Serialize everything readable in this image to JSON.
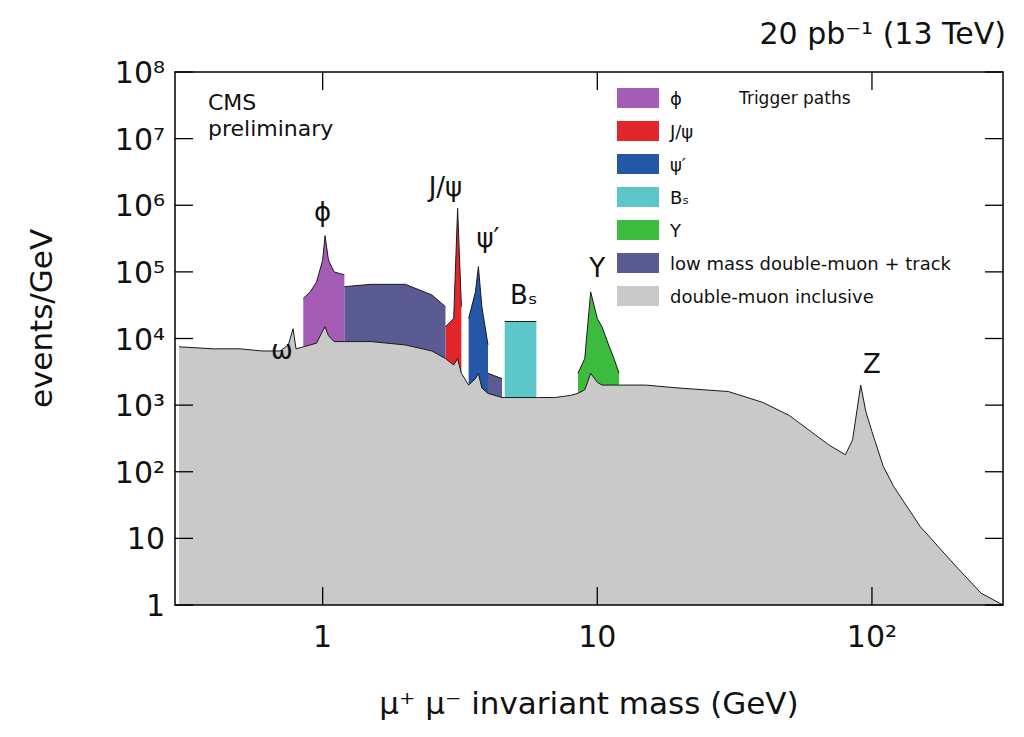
{
  "chart_data": {
    "type": "area",
    "title": "20 pb⁻¹ (13 TeV)",
    "experiment_label": "CMS preliminary",
    "x_label": "μ⁺ μ⁻ invariant mass (GeV)",
    "y_label": "events/GeV",
    "legend_title": "Trigger paths",
    "log": true,
    "grid": false,
    "legend": "upper right",
    "xlim": [
      0.29,
      300
    ],
    "ylim": [
      1,
      100000000
    ],
    "xticks": [
      1,
      10,
      {
        "value": 100,
        "label": "10²"
      }
    ],
    "yticks": [
      1,
      10,
      {
        "value": 100,
        "label": "10²"
      },
      {
        "value": 1000,
        "label": "10³"
      },
      {
        "value": 10000,
        "label": "10⁴"
      },
      {
        "value": 100000,
        "label": "10⁵"
      },
      {
        "value": 1000000,
        "label": "10⁶"
      },
      {
        "value": 10000000,
        "label": "10⁷"
      },
      {
        "value": 100000000,
        "label": "10⁸"
      }
    ],
    "x": [
      0.3,
      0.4,
      0.5,
      0.6,
      0.7,
      0.75,
      0.78,
      0.8,
      0.85,
      0.9,
      0.95,
      1.0,
      1.02,
      1.05,
      1.1,
      1.2,
      1.5,
      2.0,
      2.5,
      2.8,
      3.0,
      3.1,
      3.2,
      3.4,
      3.6,
      3.69,
      3.8,
      4.0,
      4.5,
      4.6,
      5.0,
      5.5,
      6.0,
      6.1,
      7.0,
      8.0,
      8.5,
      9.0,
      9.46,
      10.0,
      10.4,
      11.0,
      11.5,
      12,
      15,
      20,
      30,
      40,
      50,
      60,
      70,
      80,
      85,
      91,
      95,
      100,
      110,
      120,
      150,
      200,
      250,
      300
    ],
    "series": [
      {
        "name": "ϕ",
        "color": "#a45cb5",
        "values": [
          null,
          null,
          null,
          null,
          null,
          null,
          null,
          null,
          40000,
          50000,
          70000,
          150000,
          350000,
          150000,
          100000,
          90000,
          null,
          null,
          null,
          null,
          null,
          null,
          null,
          null,
          null,
          null,
          null,
          null,
          null,
          null,
          null,
          null,
          null,
          null,
          null,
          null,
          null,
          null,
          null,
          null,
          null,
          null,
          null,
          null,
          null,
          null,
          null,
          null,
          null,
          null,
          null,
          null,
          null,
          null,
          null,
          null,
          null,
          null,
          null,
          null,
          null,
          null
        ]
      },
      {
        "name": "J/ψ",
        "color": "#e3262b",
        "values": [
          null,
          null,
          null,
          null,
          null,
          null,
          null,
          null,
          null,
          null,
          null,
          null,
          null,
          null,
          null,
          null,
          null,
          null,
          null,
          15000,
          20000,
          900000,
          30000,
          null,
          null,
          null,
          null,
          null,
          null,
          null,
          null,
          null,
          null,
          null,
          null,
          null,
          null,
          null,
          null,
          null,
          null,
          null,
          null,
          null,
          null,
          null,
          null,
          null,
          null,
          null,
          null,
          null,
          null,
          null,
          null,
          null,
          null,
          null,
          null,
          null,
          null,
          null
        ]
      },
      {
        "name": "ψ′",
        "color": "#2457a6",
        "values": [
          null,
          null,
          null,
          null,
          null,
          null,
          null,
          null,
          null,
          null,
          null,
          null,
          null,
          null,
          null,
          null,
          null,
          null,
          null,
          null,
          null,
          null,
          null,
          20000,
          50000,
          120000,
          30000,
          8000,
          null,
          null,
          null,
          null,
          null,
          null,
          null,
          null,
          null,
          null,
          null,
          null,
          null,
          null,
          null,
          null,
          null,
          null,
          null,
          null,
          null,
          null,
          null,
          null,
          null,
          null,
          null,
          null,
          null,
          null,
          null,
          null,
          null,
          null
        ]
      },
      {
        "name": "Bₛ",
        "color": "#5cc6c9",
        "values": [
          null,
          null,
          null,
          null,
          null,
          null,
          null,
          null,
          null,
          null,
          null,
          null,
          null,
          null,
          null,
          null,
          null,
          null,
          null,
          null,
          null,
          null,
          null,
          null,
          null,
          null,
          null,
          null,
          null,
          18000,
          18000,
          18000,
          18000,
          null,
          null,
          null,
          null,
          null,
          null,
          null,
          null,
          null,
          null,
          null,
          null,
          null,
          null,
          null,
          null,
          null,
          null,
          null,
          null,
          null,
          null,
          null,
          null,
          null,
          null,
          null,
          null,
          null
        ]
      },
      {
        "name": "Υ",
        "color": "#3dbb3f",
        "values": [
          null,
          null,
          null,
          null,
          null,
          null,
          null,
          null,
          null,
          null,
          null,
          null,
          null,
          null,
          null,
          null,
          null,
          null,
          null,
          null,
          null,
          null,
          null,
          null,
          null,
          null,
          null,
          null,
          null,
          null,
          null,
          null,
          null,
          null,
          null,
          null,
          3000,
          5000,
          50000,
          20000,
          15000,
          8000,
          5000,
          3000,
          null,
          null,
          null,
          null,
          null,
          null,
          null,
          null,
          null,
          null,
          null,
          null,
          null,
          null,
          null,
          null,
          null,
          null
        ]
      },
      {
        "name": "low mass double-muon + track",
        "color": "#5b5b94",
        "values": [
          null,
          null,
          null,
          null,
          null,
          null,
          null,
          null,
          null,
          null,
          null,
          null,
          null,
          null,
          null,
          60000,
          65000,
          65000,
          45000,
          30000,
          null,
          null,
          null,
          null,
          null,
          null,
          null,
          3000,
          2500,
          null,
          null,
          null,
          null,
          null,
          null,
          null,
          null,
          null,
          null,
          null,
          null,
          null,
          null,
          null,
          null,
          null,
          null,
          null,
          null,
          null,
          null,
          null,
          null,
          null,
          null,
          null,
          null,
          null,
          null,
          null,
          null,
          null
        ]
      },
      {
        "name": "double-muon inclusive",
        "color": "#c9c9c9",
        "values": [
          7500,
          7000,
          7000,
          6500,
          6500,
          8000,
          14000,
          7000,
          7500,
          8000,
          8500,
          13000,
          15000,
          11000,
          9000,
          9000,
          9000,
          8000,
          6500,
          5000,
          4000,
          5000,
          3000,
          2000,
          2500,
          3000,
          1800,
          1500,
          1300,
          1300,
          1300,
          1300,
          1300,
          1300,
          1300,
          1400,
          1500,
          1700,
          3000,
          2200,
          2000,
          2000,
          2000,
          2000,
          2000,
          1800,
          1600,
          1100,
          700,
          400,
          250,
          180,
          300,
          2000,
          800,
          400,
          120,
          60,
          15,
          4,
          1.5,
          1
        ]
      }
    ],
    "annotations": [
      {
        "text": "ω",
        "x": 0.71,
        "y": 5000
      },
      {
        "text": "ϕ",
        "x": 1.0,
        "y": 590000
      },
      {
        "text": "J/ψ",
        "x": 2.8,
        "y": 1400000
      },
      {
        "text": "ψ′",
        "x": 4.0,
        "y": 240000
      },
      {
        "text": "Bₛ",
        "x": 5.4,
        "y": 33000
      },
      {
        "text": "Υ",
        "x": 10,
        "y": 84000
      },
      {
        "text": "Z",
        "x": 100,
        "y": 3000
      }
    ]
  }
}
